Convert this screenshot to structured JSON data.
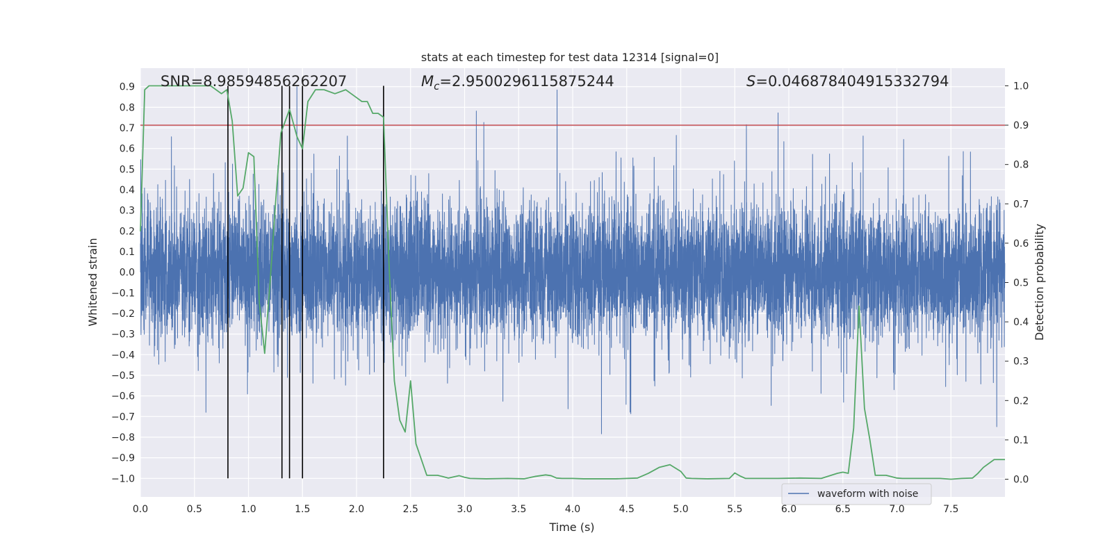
{
  "chart_data": {
    "type": "line",
    "title": "stats at each timestep for test data 12314 [signal=0]",
    "xlabel": "Time (s)",
    "ylabel": "Whitened strain",
    "y2label": "Detection probability",
    "xlim": [
      0.0,
      8.0
    ],
    "ylim": [
      -1.09,
      0.99
    ],
    "y2lim": [
      -0.045,
      1.045
    ],
    "x_ticks": [
      "0.0",
      "0.5",
      "1.0",
      "1.5",
      "2.0",
      "2.5",
      "3.0",
      "3.5",
      "4.0",
      "4.5",
      "5.0",
      "5.5",
      "6.0",
      "6.5",
      "7.0",
      "7.5"
    ],
    "y_ticks": [
      "0.9",
      "0.8",
      "0.7",
      "0.6",
      "0.5",
      "0.4",
      "0.3",
      "0.2",
      "0.1",
      "0.0",
      "−0.1",
      "−0.2",
      "−0.3",
      "−0.4",
      "−0.5",
      "−0.6",
      "−0.7",
      "−0.8",
      "−0.9",
      "−1.0"
    ],
    "y2_ticks": [
      "1.0",
      "0.9",
      "0.8",
      "0.7",
      "0.6",
      "0.5",
      "0.4",
      "0.3",
      "0.2",
      "0.1",
      "0.0"
    ],
    "stats": {
      "snr": "SNR=8.98594856262207",
      "mc_symbol": "M",
      "mc_sub": "c",
      "mc_value": "=2.9500296115875244",
      "s_symbol": "S",
      "s_value": "=0.046878404915332794"
    },
    "threshold": {
      "y2": 0.9,
      "color": "#c44e52"
    },
    "vlines": {
      "x": [
        0.81,
        1.31,
        1.38,
        1.5,
        2.25
      ],
      "ymin": -1.0,
      "ymax_y2": 1.0,
      "color": "#000000"
    },
    "series": [
      {
        "name": "waveform with noise",
        "axis": "left",
        "color": "#4c72b0",
        "description": "whitened noise strain sampled densely over 0–8 s, amplitude mostly within ±0.45 with spikes up to 0.9 / −0.9"
      },
      {
        "name": "detection probability",
        "axis": "right",
        "color": "#55a868",
        "x": [
          0.0,
          0.04,
          0.08,
          0.13,
          0.19,
          0.25,
          0.35,
          0.5,
          0.65,
          0.7,
          0.75,
          0.8,
          0.85,
          0.9,
          0.95,
          1.0,
          1.05,
          1.1,
          1.15,
          1.2,
          1.25,
          1.3,
          1.38,
          1.45,
          1.5,
          1.55,
          1.62,
          1.7,
          1.8,
          1.9,
          1.95,
          2.0,
          2.05,
          2.1,
          2.15,
          2.2,
          2.25,
          2.3,
          2.35,
          2.4,
          2.45,
          2.5,
          2.55,
          2.6,
          2.65,
          2.75,
          2.85,
          2.95,
          3.0,
          3.05,
          3.2,
          3.4,
          3.55,
          3.65,
          3.75,
          3.8,
          3.85,
          3.9,
          4.0,
          4.1,
          4.2,
          4.4,
          4.6,
          4.7,
          4.8,
          4.9,
          5.0,
          5.05,
          5.1,
          5.25,
          5.45,
          5.5,
          5.55,
          5.6,
          5.7,
          5.9,
          6.1,
          6.3,
          6.45,
          6.5,
          6.55,
          6.6,
          6.65,
          6.7,
          6.75,
          6.8,
          6.9,
          7.0,
          7.05,
          7.15,
          7.3,
          7.4,
          7.5,
          7.6,
          7.7,
          7.75,
          7.8,
          7.9,
          8.0
        ],
        "y": [
          0.63,
          0.99,
          1.0,
          1.0,
          1.0,
          1.0,
          1.0,
          1.0,
          1.0,
          0.99,
          0.98,
          0.99,
          0.91,
          0.72,
          0.74,
          0.83,
          0.82,
          0.45,
          0.32,
          0.5,
          0.7,
          0.88,
          0.94,
          0.87,
          0.84,
          0.96,
          0.99,
          0.99,
          0.98,
          0.99,
          0.98,
          0.97,
          0.96,
          0.96,
          0.93,
          0.93,
          0.92,
          0.55,
          0.25,
          0.15,
          0.12,
          0.25,
          0.09,
          0.05,
          0.01,
          0.01,
          0.003,
          0.009,
          0.005,
          0.002,
          0.001,
          0.002,
          0.001,
          0.007,
          0.011,
          0.009,
          0.003,
          0.002,
          0.002,
          0.001,
          0.001,
          0.001,
          0.003,
          0.015,
          0.03,
          0.037,
          0.02,
          0.003,
          0.002,
          0.001,
          0.002,
          0.016,
          0.008,
          0.002,
          0.002,
          0.002,
          0.003,
          0.002,
          0.015,
          0.018,
          0.015,
          0.13,
          0.44,
          0.18,
          0.1,
          0.01,
          0.01,
          0.003,
          0.002,
          0.002,
          0.002,
          0.002,
          0.0,
          0.002,
          0.003,
          0.015,
          0.03,
          0.05,
          0.05
        ]
      }
    ],
    "legend": {
      "label": "waveform with noise",
      "placement": "lower-right"
    }
  }
}
